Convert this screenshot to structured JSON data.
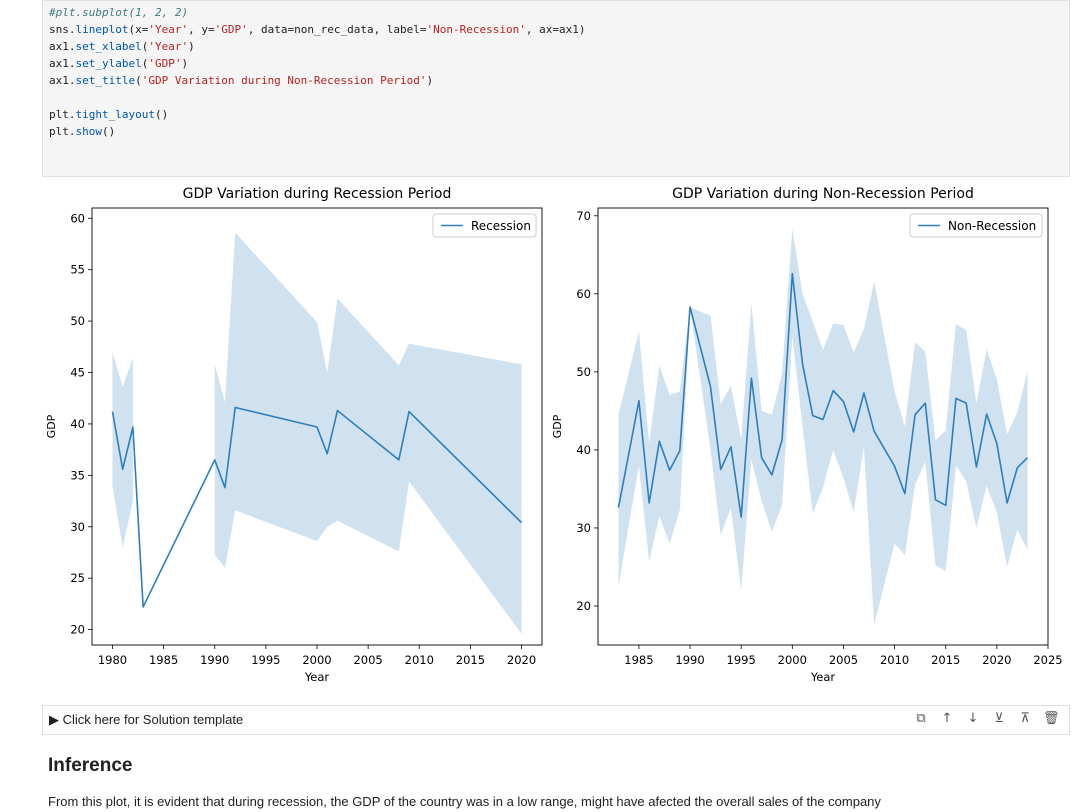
{
  "code_lines": [
    {
      "parts": [
        {
          "t": "#plt.subplot(1, 2, 2)",
          "k": "com"
        }
      ]
    },
    {
      "parts": [
        {
          "t": "sns.",
          "k": ""
        },
        {
          "t": "lineplot",
          "k": "fn"
        },
        {
          "t": "(x=",
          "k": ""
        },
        {
          "t": "'Year'",
          "k": "str"
        },
        {
          "t": ", y=",
          "k": ""
        },
        {
          "t": "'GDP'",
          "k": "str"
        },
        {
          "t": ", data=non_rec_data, label=",
          "k": ""
        },
        {
          "t": "'Non-Recession'",
          "k": "str"
        },
        {
          "t": ", ax=ax1)",
          "k": ""
        }
      ]
    },
    {
      "parts": [
        {
          "t": "ax1.",
          "k": ""
        },
        {
          "t": "set_xlabel",
          "k": "fn"
        },
        {
          "t": "(",
          "k": ""
        },
        {
          "t": "'Year'",
          "k": "str"
        },
        {
          "t": ")",
          "k": ""
        }
      ]
    },
    {
      "parts": [
        {
          "t": "ax1.",
          "k": ""
        },
        {
          "t": "set_ylabel",
          "k": "fn"
        },
        {
          "t": "(",
          "k": ""
        },
        {
          "t": "'GDP'",
          "k": "str"
        },
        {
          "t": ")",
          "k": ""
        }
      ]
    },
    {
      "parts": [
        {
          "t": "ax1.",
          "k": ""
        },
        {
          "t": "set_title",
          "k": "fn"
        },
        {
          "t": "(",
          "k": ""
        },
        {
          "t": "'GDP Variation during Non-Recession Period'",
          "k": "str"
        },
        {
          "t": ")",
          "k": ""
        }
      ]
    },
    {
      "parts": []
    },
    {
      "parts": [
        {
          "t": "plt.",
          "k": ""
        },
        {
          "t": "tight_layout",
          "k": "fn"
        },
        {
          "t": "()",
          "k": ""
        }
      ]
    },
    {
      "parts": [
        {
          "t": "plt.",
          "k": ""
        },
        {
          "t": "show",
          "k": "fn"
        },
        {
          "t": "()",
          "k": ""
        }
      ]
    }
  ],
  "chart_data": [
    {
      "type": "line",
      "title": "GDP Variation during Recession Period",
      "xlabel": "Year",
      "ylabel": "GDP",
      "legend": "Recession",
      "legend_position": "top-right",
      "xlim": [
        1978,
        2022
      ],
      "ylim": [
        18.5,
        61
      ],
      "xticks": [
        1980,
        1985,
        1990,
        1995,
        2000,
        2005,
        2010,
        2015,
        2020
      ],
      "yticks": [
        20,
        25,
        30,
        35,
        40,
        45,
        50,
        55,
        60
      ],
      "color": "#2e7ebc",
      "band_color": "#a9c9e2",
      "segments": [
        {
          "x": [
            1980,
            1981,
            1982
          ],
          "y": [
            41.2,
            35.6,
            39.7
          ],
          "lower": [
            34.0,
            28.0,
            32.5
          ],
          "upper": [
            47.0,
            43.6,
            46.4
          ]
        },
        {
          "x": [
            1983
          ],
          "y": [
            22.2
          ],
          "lower": [
            22.2
          ],
          "upper": [
            22.2
          ]
        },
        {
          "x": [
            1990,
            1991,
            1992,
            2000,
            2001,
            2002,
            2008,
            2009,
            2020
          ],
          "y": [
            36.5,
            33.8,
            41.6,
            39.7,
            37.1,
            41.3,
            36.5,
            41.2,
            30.4
          ],
          "lower": [
            27.3,
            26.0,
            31.6,
            28.6,
            30.0,
            30.6,
            27.6,
            34.4,
            19.6
          ],
          "upper": [
            45.8,
            42.1,
            58.6,
            49.9,
            45.0,
            52.2,
            45.7,
            47.8,
            45.8
          ]
        }
      ],
      "line_links": [
        [
          1982,
          39.7,
          1983,
          22.2
        ],
        [
          1983,
          22.2,
          1990,
          36.5
        ]
      ]
    },
    {
      "type": "line",
      "title": "GDP Variation during Non-Recession Period",
      "xlabel": "Year",
      "ylabel": "GDP",
      "legend": "Non-Recession",
      "legend_position": "top-right",
      "xlim": [
        1981,
        2025
      ],
      "ylim": [
        15,
        71
      ],
      "xticks": [
        1985,
        1990,
        1995,
        2000,
        2005,
        2010,
        2015,
        2020,
        2025
      ],
      "yticks": [
        20,
        30,
        40,
        50,
        60,
        70
      ],
      "color": "#2e7ebc",
      "band_color": "#a9c9e2",
      "segments": [
        {
          "x": [
            1983,
            1985,
            1986,
            1987,
            1988,
            1989,
            1990,
            1992,
            1993,
            1994,
            1995,
            1996,
            1997,
            1998,
            1999,
            2000,
            2001,
            2002,
            2003,
            2004,
            2005,
            2006,
            2007,
            2008,
            2010,
            2011,
            2012,
            2013,
            2014,
            2015,
            2016,
            2017,
            2018,
            2019,
            2020,
            2021,
            2022,
            2023
          ],
          "y": [
            32.6,
            46.3,
            33.2,
            41.1,
            37.4,
            39.9,
            58.3,
            48.1,
            37.5,
            40.4,
            31.4,
            49.2,
            39.0,
            36.8,
            41.3,
            62.6,
            51.0,
            44.4,
            43.9,
            47.6,
            46.2,
            42.3,
            47.3,
            42.4,
            37.9,
            34.4,
            44.5,
            46.0,
            33.6,
            32.9,
            46.6,
            46.0,
            37.8,
            44.6,
            40.8,
            33.2,
            37.7,
            39.0
          ],
          "lower": [
            22.5,
            38.0,
            25.7,
            31.5,
            28.0,
            32.3,
            58.3,
            40.0,
            29.1,
            32.6,
            22.0,
            38.8,
            33.5,
            29.5,
            33.0,
            54.5,
            43.0,
            31.8,
            35.2,
            40.0,
            36.4,
            32.0,
            40.4,
            17.6,
            28.0,
            26.5,
            35.5,
            38.5,
            25.2,
            24.5,
            38.0,
            36.0,
            30.0,
            35.4,
            32.0,
            25.0,
            29.8,
            27.2
          ],
          "upper": [
            44.5,
            55.2,
            40.8,
            50.8,
            47.0,
            47.5,
            58.3,
            57.2,
            45.9,
            48.2,
            41.3,
            58.8,
            45.0,
            44.5,
            49.8,
            68.3,
            60.0,
            56.4,
            52.8,
            56.2,
            56.0,
            52.5,
            55.5,
            61.6,
            47.5,
            43.0,
            53.8,
            52.6,
            41.2,
            42.5,
            56.1,
            55.4,
            46.0,
            52.9,
            49.0,
            42.0,
            44.8,
            50.1
          ]
        }
      ]
    }
  ],
  "solution": {
    "label": "▶ Click here for Solution template"
  },
  "toolbar": {
    "copy": "⧉",
    "up": "↑",
    "down": "↓",
    "insert_above": "⊻",
    "insert_below": "⊼",
    "delete": "🗑"
  },
  "inference": {
    "heading": "Inference",
    "text": "From this plot, it is evident that during recession, the GDP of the country was in a low range, might have afected the overall sales of the company"
  }
}
